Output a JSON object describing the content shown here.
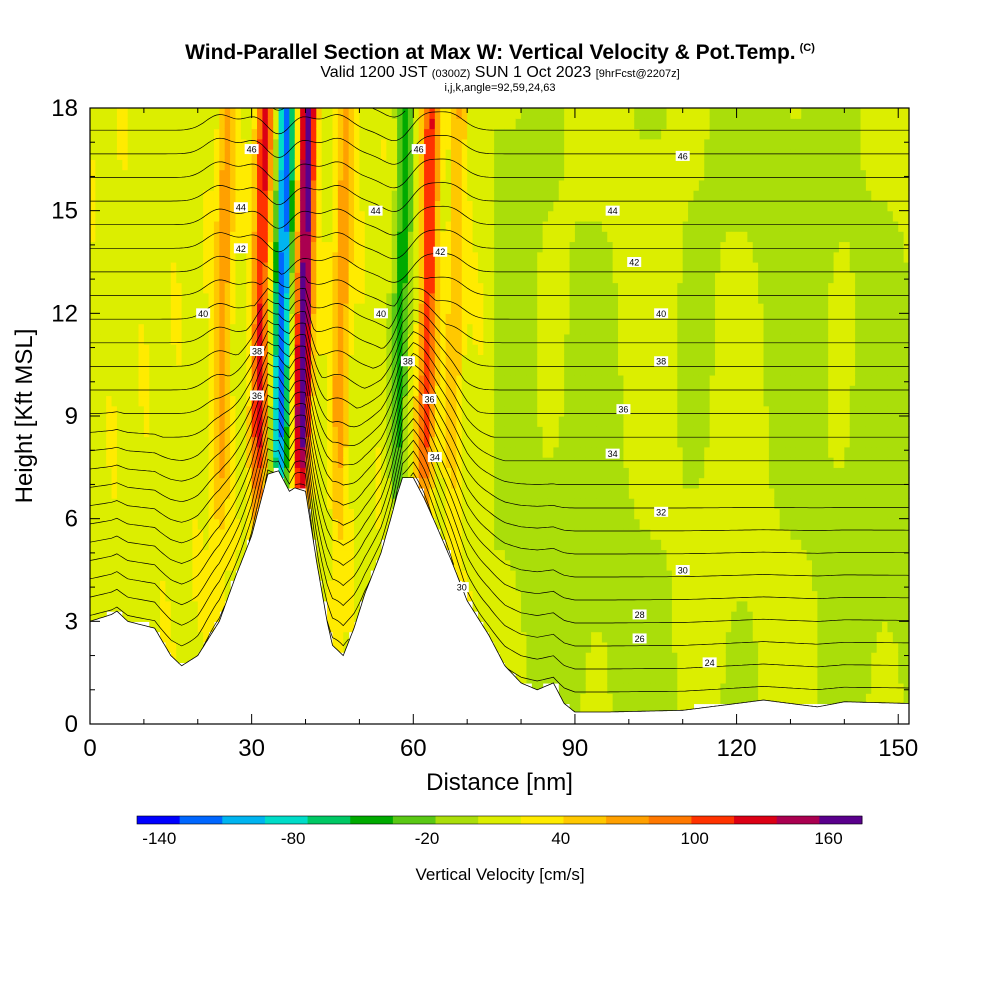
{
  "header": {
    "title": "Wind-Parallel Section at Max W: Vertical Velocity & Pot.Temp.",
    "copyright": "(C)",
    "valid_prefix": "Valid 1200 JST",
    "valid_utc": "(0300Z)",
    "valid_date": "SUN 1 Oct 2023",
    "forecast_info": "[9hrFcst@2207z]",
    "params": "i,j,k,angle=92,59,24,63"
  },
  "chart_data": {
    "type": "heatmap",
    "xlabel": "Distance [nm]",
    "ylabel": "Height [Kft MSL]",
    "xlim": [
      0,
      152
    ],
    "ylim": [
      0,
      18
    ],
    "x_ticks": [
      "0",
      "30",
      "60",
      "90",
      "120",
      "150"
    ],
    "x_tick_values": [
      0,
      30,
      60,
      90,
      120,
      150
    ],
    "y_ticks": [
      "0",
      "3",
      "6",
      "9",
      "12",
      "15",
      "18"
    ],
    "y_tick_values": [
      0,
      3,
      6,
      9,
      12,
      15,
      18
    ],
    "terrain": {
      "distance_nm": [
        0,
        4,
        5,
        7,
        12,
        15,
        17,
        20,
        24,
        27,
        30,
        32,
        33,
        35,
        37,
        38,
        40,
        42,
        44,
        45,
        47,
        49,
        51,
        54,
        56,
        57,
        58,
        60,
        62,
        64,
        67,
        70,
        74,
        77,
        80,
        83,
        86,
        88,
        90,
        96,
        110,
        125,
        135,
        140,
        152
      ],
      "height_kft": [
        3.0,
        3.2,
        3.3,
        3.0,
        2.8,
        2.0,
        1.7,
        2.0,
        3.0,
        4.3,
        5.5,
        6.7,
        7.3,
        7.4,
        6.8,
        6.9,
        6.8,
        4.8,
        3.0,
        2.3,
        2.0,
        2.8,
        3.8,
        5.0,
        6.1,
        6.7,
        7.2,
        7.2,
        6.6,
        5.9,
        4.8,
        3.6,
        2.6,
        1.7,
        1.2,
        1.0,
        1.2,
        0.6,
        0.35,
        0.35,
        0.4,
        0.7,
        0.5,
        0.65,
        0.6
      ]
    },
    "updraft_columns": [
      {
        "center_nm": 24,
        "peak_cm_s": 60
      },
      {
        "center_nm": 31,
        "peak_cm_s": 110
      },
      {
        "center_nm": 35,
        "peak_cm_s": -140
      },
      {
        "center_nm": 39,
        "peak_cm_s": 160
      },
      {
        "center_nm": 46,
        "peak_cm_s": 60
      },
      {
        "center_nm": 57,
        "peak_cm_s": -60
      },
      {
        "center_nm": 62,
        "peak_cm_s": 100
      },
      {
        "center_nm": 67,
        "peak_cm_s": 40
      }
    ],
    "contour_labels": [
      {
        "text": "46",
        "x": 30,
        "y": 16.8
      },
      {
        "text": "44",
        "x": 28,
        "y": 15.1
      },
      {
        "text": "42",
        "x": 28,
        "y": 13.9
      },
      {
        "text": "40",
        "x": 21,
        "y": 12.0
      },
      {
        "text": "38",
        "x": 31,
        "y": 10.9
      },
      {
        "text": "36",
        "x": 31,
        "y": 9.6
      },
      {
        "text": "46",
        "x": 61,
        "y": 16.8
      },
      {
        "text": "44",
        "x": 53,
        "y": 15.0
      },
      {
        "text": "42",
        "x": 65,
        "y": 13.8
      },
      {
        "text": "40",
        "x": 54,
        "y": 12.0
      },
      {
        "text": "38",
        "x": 59,
        "y": 10.6
      },
      {
        "text": "36",
        "x": 63,
        "y": 9.5
      },
      {
        "text": "34",
        "x": 64,
        "y": 7.8
      },
      {
        "text": "30",
        "x": 69,
        "y": 4.0
      },
      {
        "text": "46",
        "x": 110,
        "y": 16.6
      },
      {
        "text": "44",
        "x": 97,
        "y": 15.0
      },
      {
        "text": "42",
        "x": 101,
        "y": 13.5
      },
      {
        "text": "40",
        "x": 106,
        "y": 12.0
      },
      {
        "text": "38",
        "x": 106,
        "y": 10.6
      },
      {
        "text": "36",
        "x": 99,
        "y": 9.2
      },
      {
        "text": "34",
        "x": 97,
        "y": 7.9
      },
      {
        "text": "32",
        "x": 106,
        "y": 6.2
      },
      {
        "text": "30",
        "x": 110,
        "y": 4.5
      },
      {
        "text": "28",
        "x": 102,
        "y": 3.2
      },
      {
        "text": "26",
        "x": 102,
        "y": 2.5
      },
      {
        "text": "24",
        "x": 115,
        "y": 1.8
      }
    ],
    "colorbar": {
      "label": "Vertical Velocity [cm/s]",
      "tick_labels": [
        "-140",
        "-80",
        "-20",
        "40",
        "100",
        "160"
      ],
      "tick_values": [
        -140,
        -80,
        -20,
        40,
        100,
        160
      ],
      "range": [
        -150,
        175
      ],
      "colors": [
        "#0000ff",
        "#0066ff",
        "#00b4f0",
        "#00dcc8",
        "#00c864",
        "#00aa00",
        "#5ac814",
        "#aade0a",
        "#dcee00",
        "#ffeb00",
        "#ffc800",
        "#ffa000",
        "#ff7800",
        "#ff3200",
        "#dc0014",
        "#aa0050",
        "#5a008c"
      ]
    }
  }
}
